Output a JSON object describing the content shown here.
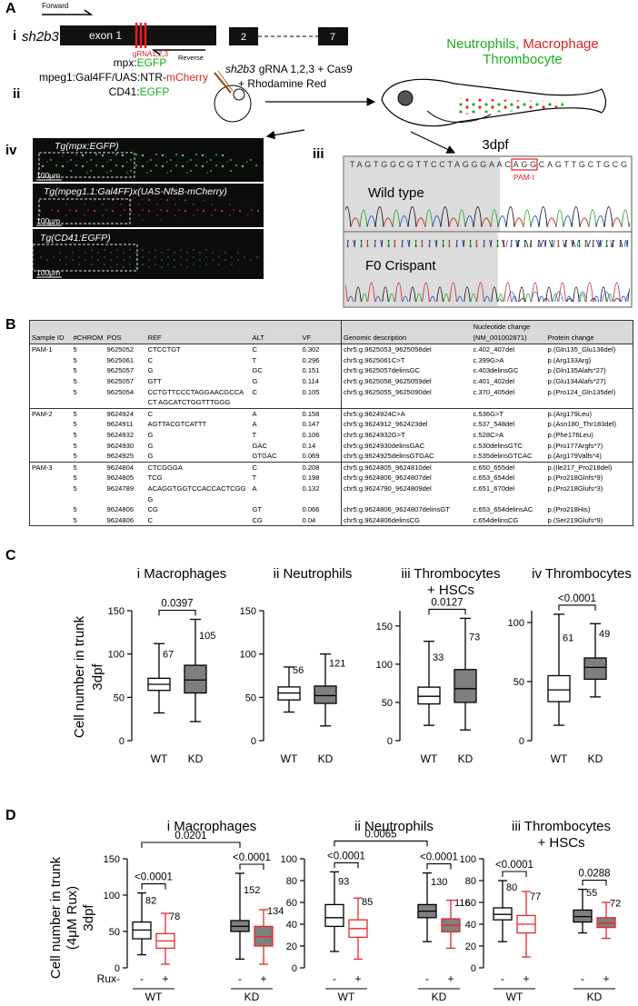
{
  "panel_a": {
    "label": "A",
    "i": {
      "label": "i",
      "gene": "sh2b3",
      "forward": "Forward",
      "exon1": "exon 1",
      "grna": "gRNA1,2,3",
      "reverse": "Reverse",
      "exon2": "2",
      "exon7": "7"
    },
    "ii": {
      "label": "ii",
      "lines": [
        [
          "mpx:",
          "EGFP"
        ],
        [
          "mpeg1:Gal4FF/UAS:NTR-",
          "mCherry"
        ],
        [
          "CD41:",
          "EGFP"
        ]
      ],
      "injection": {
        "gene": "sh2b3",
        "line1": "gRNA 1,2,3 + Cas9",
        "line2": "+ Rhodamine Red"
      },
      "cells": {
        "neutrophils": "Neutrophils,",
        "macrophage": "Macrophage",
        "thrombocyte": "Thrombocyte"
      },
      "stage": "3dpf"
    },
    "iv": {
      "label": "iv",
      "images": [
        {
          "title": "Tg(mpx:EGFP)",
          "scale": "100μm"
        },
        {
          "title": "Tg(mpeg1.1:Gal4FF)x(UAS-NfsB-mCherry)",
          "scale": "100μm"
        },
        {
          "title": "Tg(CD41:EGFP)",
          "scale": "100μm"
        }
      ]
    },
    "iii": {
      "label": "iii",
      "sequence": "TAGTGGCGTTCCTAGGGAACAGGCAGTTGCTGCG",
      "pam": "PAM-I",
      "traces": [
        "Wild type",
        "F0 Crispant"
      ]
    }
  },
  "table": {
    "label": "B",
    "columns": [
      "Sample ID",
      "#CHROM",
      "POS",
      "REF",
      "ALT",
      "VF",
      "Genomic description",
      [
        "Nucleotide change",
        "(NM_001002871)"
      ],
      "Protein change"
    ],
    "groups": [
      {
        "sample_id": "PAM-1",
        "rows": [
          [
            "5",
            "9625052",
            "CTCCTGT",
            "C",
            "0.302",
            "chr5:g.9625053_9625058del",
            "c.402_407del",
            "p.(Gln135_Glu136del)"
          ],
          [
            "5",
            "9625061",
            "C",
            "T",
            "0.296",
            "chr5:g.9625061C>T",
            "c.399G>A",
            "p.(Arg133Arg)"
          ],
          [
            "5",
            "9625057",
            "G",
            "GC",
            "0.151",
            "chr5:g.9625057delinsGC",
            "c.403delinsGC",
            "p.(Gln135Alafs*27)"
          ],
          [
            "5",
            "9625057",
            "GTT",
            "G",
            "0.114",
            "chr5:g.9625058_9625059del",
            "c.401_402del",
            "p.(Glu134Alafs*27)"
          ],
          [
            "5",
            "9625054",
            "CCTGTTCCCTAGGAACGCCACT AGCATCTGGTTTGGG",
            "C",
            "0.105",
            "chr5:g.9625055_9625090del",
            "c.370_405del",
            "p.(Pro124_Gln135del)"
          ]
        ]
      },
      {
        "sample_id": "PAM-2",
        "rows": [
          [
            "5",
            "9624924",
            "C",
            "A",
            "0.158",
            "chr5:g.9624924C>A",
            "c.536G>T",
            "p.(Arg179Leu)"
          ],
          [
            "5",
            "9624911",
            "AGTTACGTCATTT",
            "A",
            "0.147",
            "chr5:g.9624912_962423del",
            "c.537_548del",
            "p.(Asn180_Thr183del)"
          ],
          [
            "5",
            "9624932",
            "G",
            "T",
            "0.106",
            "chr5:g.9624932G>T",
            "c.528C>A",
            "p.(Phe176Leu)"
          ],
          [
            "5",
            "9624930",
            "G",
            "GAC",
            "0.14",
            "chr5:g.9624930delinsGAC",
            "c.530delinsGTC",
            "p.(Pro177Argfs*7)"
          ],
          [
            "5",
            "9624925",
            "G",
            "GTGAC",
            "0.069",
            "chr5:g.9624925delinsGTGAC",
            "c.535delinsGTCAC",
            "p.(Arg179Valfs*4)"
          ]
        ]
      },
      {
        "sample_id": "PAM-3",
        "rows": [
          [
            "5",
            "9624804",
            "CTCGGGA",
            "C",
            "0.208",
            "chr5:g.9624805_9624810del",
            "c.650_655del",
            "p.(Ile217_Pro218del)"
          ],
          [
            "5",
            "9624805",
            "TCG",
            "T",
            "0.198",
            "chr5:g.9624806_9624807del",
            "c.653_654del",
            "p.(Pro218Glnfs*9)"
          ],
          [
            "5",
            "9624789",
            "ACAGGTGGTCCACCACTCGGG",
            "A",
            "0.132",
            "chr5:g.9624790_9624809del",
            "c.651_670del",
            "p.(Pro218Glufs*3)"
          ],
          [
            "5",
            "9624806",
            "CG",
            "GT",
            "0.066",
            "chr5:g.9624806_9624807delinsGT",
            "c.653_654delinsAC",
            "p.(Pro218His)"
          ],
          [
            "5",
            "9624806",
            "C",
            "CG",
            "0.04",
            "chr5:g.9624806delinsCG",
            "c.654delinsCG",
            "p.(Ser219Glufs*9)"
          ]
        ]
      }
    ]
  },
  "panel_c": {
    "label": "C",
    "y_label": [
      "Cell number in trunk",
      "3dpf"
    ]
  },
  "panel_d": {
    "label": "D",
    "y_label": [
      "Cell number in trunk",
      "(4μM Rux)",
      "3dpf"
    ],
    "rux_label": "Rux-",
    "treatments": [
      "-",
      "+"
    ]
  },
  "chart_data": [
    {
      "type": "box",
      "title": [
        "i Macrophages"
      ],
      "categories": [
        "WT",
        "KD"
      ],
      "ylim": [
        0,
        150
      ],
      "yticks": [
        0,
        50,
        100,
        150
      ],
      "boxes": [
        {
          "stats": [
            32,
            58,
            65,
            72,
            112
          ],
          "n": 67,
          "fill": "#ffffff",
          "stroke": "#000000"
        },
        {
          "stats": [
            22,
            55,
            70,
            87,
            140
          ],
          "n": 105,
          "fill": "#7f7f7f",
          "stroke": "#000000"
        }
      ],
      "comparisons": [
        {
          "boxes": [
            0,
            1
          ],
          "label": "0.0397"
        }
      ]
    },
    {
      "type": "box",
      "title": [
        "ii Neutrophils"
      ],
      "categories": [
        "WT",
        "KD"
      ],
      "ylim": [
        0,
        150
      ],
      "yticks": [
        0,
        50,
        100,
        150
      ],
      "boxes": [
        {
          "stats": [
            33,
            47,
            55,
            62,
            85
          ],
          "n": 56,
          "fill": "#ffffff",
          "stroke": "#000000"
        },
        {
          "stats": [
            17,
            43,
            52,
            63,
            100
          ],
          "n": 121,
          "fill": "#7f7f7f",
          "stroke": "#000000"
        }
      ],
      "comparisons": []
    },
    {
      "type": "box",
      "title": [
        "iii Thrombocytes",
        "+ HSCs"
      ],
      "categories": [
        "WT",
        "KD"
      ],
      "ylim": [
        0,
        170
      ],
      "yticks": [
        0,
        50,
        100,
        150
      ],
      "boxes": [
        {
          "stats": [
            20,
            48,
            58,
            70,
            130
          ],
          "n": 33,
          "fill": "#ffffff",
          "stroke": "#000000"
        },
        {
          "stats": [
            14,
            50,
            68,
            93,
            160
          ],
          "n": 73,
          "fill": "#7f7f7f",
          "stroke": "#000000"
        }
      ],
      "comparisons": [
        {
          "boxes": [
            0,
            1
          ],
          "label": "0.0127"
        }
      ]
    },
    {
      "type": "box",
      "title": [
        "iv Thrombocytes"
      ],
      "categories": [
        "WT",
        "KD"
      ],
      "ylim": [
        0,
        110
      ],
      "yticks": [
        0,
        50,
        100
      ],
      "boxes": [
        {
          "stats": [
            13,
            33,
            43,
            55,
            107
          ],
          "n": 61,
          "fill": "#ffffff",
          "stroke": "#000000"
        },
        {
          "stats": [
            37,
            52,
            62,
            70,
            99
          ],
          "n": 49,
          "fill": "#7f7f7f",
          "stroke": "#000000"
        }
      ],
      "comparisons": [
        {
          "boxes": [
            0,
            1
          ],
          "label": "<0.0001"
        }
      ]
    },
    {
      "type": "box",
      "title": [
        "i Macrophages"
      ],
      "categories": [
        "WT",
        "KD"
      ],
      "ylim": [
        0,
        150
      ],
      "yticks": [
        0,
        50,
        100,
        150
      ],
      "boxes": [
        {
          "stats": [
            18,
            40,
            52,
            63,
            103
          ],
          "n": 82,
          "fill": "#ffffff",
          "stroke": "#000000"
        },
        {
          "stats": [
            5,
            27,
            37,
            47,
            75
          ],
          "n": 78,
          "fill": "#ffffff",
          "stroke": "#e8262b"
        },
        {
          "stats": [
            12,
            50,
            57,
            65,
            130
          ],
          "n": 152,
          "fill": "#7f7f7f",
          "stroke": "#000000"
        },
        {
          "stats": [
            5,
            30,
            43,
            57,
            80
          ],
          "n": 134,
          "fill": "#7f7f7f",
          "stroke": "#e8262b"
        }
      ],
      "comparisons": [
        {
          "boxes": [
            0,
            1
          ],
          "label": "<0.0001"
        },
        {
          "boxes": [
            2,
            3
          ],
          "label": "<0.0001"
        },
        {
          "boxes": [
            0,
            2
          ],
          "label": "0.0201"
        }
      ]
    },
    {
      "type": "box",
      "title": [
        "ii Neutrophils"
      ],
      "categories": [
        "WT",
        "KD"
      ],
      "ylim": [
        0,
        100
      ],
      "yticks": [
        0,
        20,
        40,
        60,
        80,
        100
      ],
      "boxes": [
        {
          "stats": [
            15,
            38,
            46,
            58,
            88
          ],
          "n": 93,
          "fill": "#ffffff",
          "stroke": "#000000"
        },
        {
          "stats": [
            8,
            28,
            36,
            44,
            64
          ],
          "n": 85,
          "fill": "#ffffff",
          "stroke": "#e8262b"
        },
        {
          "stats": [
            24,
            46,
            52,
            58,
            87
          ],
          "n": 130,
          "fill": "#7f7f7f",
          "stroke": "#000000"
        },
        {
          "stats": [
            18,
            33,
            39,
            45,
            62
          ],
          "n": 116,
          "fill": "#7f7f7f",
          "stroke": "#e8262b"
        }
      ],
      "comparisons": [
        {
          "boxes": [
            0,
            1
          ],
          "label": "<0.0001"
        },
        {
          "boxes": [
            2,
            3
          ],
          "label": "<0.0001"
        },
        {
          "boxes": [
            0,
            2
          ],
          "label": "0.0065"
        }
      ]
    },
    {
      "type": "box",
      "title": [
        "iii Thrombocytes",
        "+ HSCs"
      ],
      "categories": [
        "WT",
        "KD"
      ],
      "ylim": [
        0,
        100
      ],
      "yticks": [
        0,
        20,
        40,
        60,
        80,
        100
      ],
      "boxes": [
        {
          "stats": [
            24,
            44,
            49,
            55,
            80
          ],
          "n": 80,
          "fill": "#ffffff",
          "stroke": "#000000"
        },
        {
          "stats": [
            10,
            32,
            40,
            48,
            70
          ],
          "n": 77,
          "fill": "#ffffff",
          "stroke": "#e8262b"
        },
        {
          "stats": [
            32,
            42,
            47,
            53,
            72
          ],
          "n": 55,
          "fill": "#7f7f7f",
          "stroke": "#000000"
        },
        {
          "stats": [
            27,
            37,
            41,
            46,
            60
          ],
          "n": 72,
          "fill": "#7f7f7f",
          "stroke": "#e8262b"
        }
      ],
      "comparisons": [
        {
          "boxes": [
            0,
            1
          ],
          "label": "<0.0001"
        },
        {
          "boxes": [
            2,
            3
          ],
          "label": "0.0288"
        }
      ]
    }
  ]
}
